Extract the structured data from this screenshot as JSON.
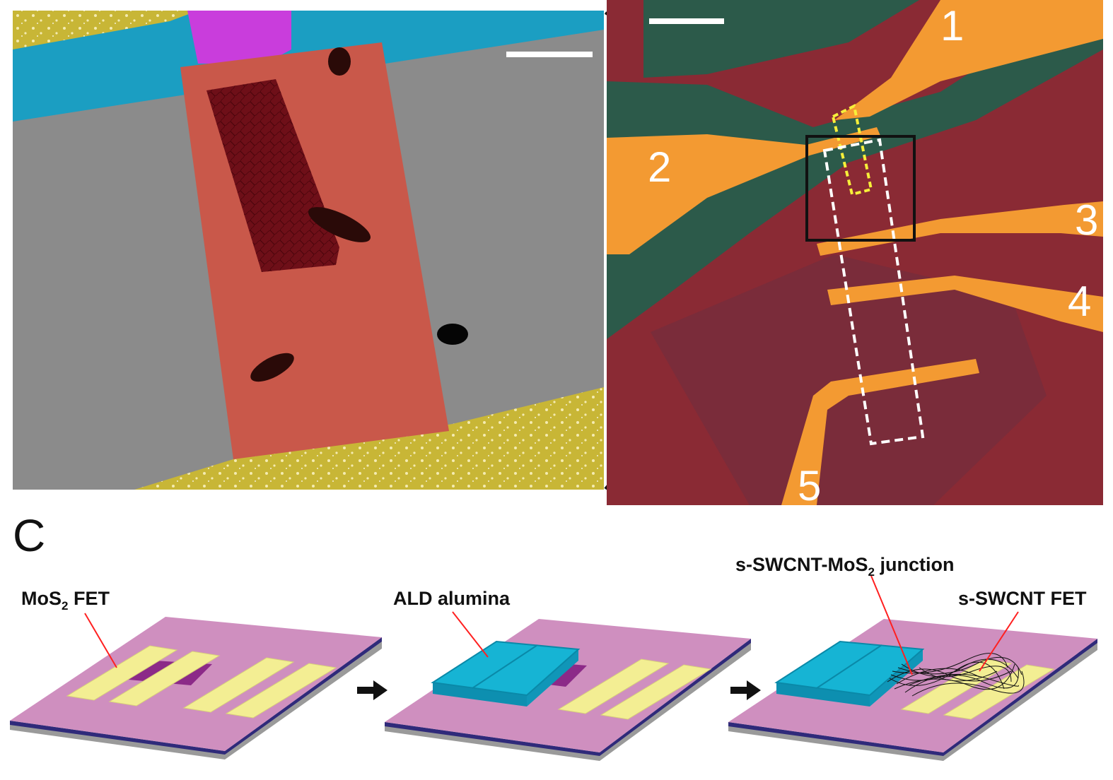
{
  "panel_c": {
    "letter": "C",
    "step1_label_pre": "MoS",
    "step1_label_sub": "2",
    "step1_label_post": " FET",
    "step2_label": "ALD alumina",
    "step3_junction_pre": "s-SWCNT-MoS",
    "step3_junction_sub": "2",
    "step3_junction_post": " junction",
    "step3_fet_label": "s-SWCNT FET"
  },
  "optical_image": {
    "electrode_labels": [
      "1",
      "2",
      "3",
      "4",
      "5"
    ]
  },
  "colors": {
    "substrate_top": "#cf8fbf",
    "substrate_side": "#2f2a7a",
    "electrode": "#f3ee93",
    "alumina": "#16b4d4",
    "mos2_flake": "#8c2a88",
    "sem_background": "#8b8b8b",
    "sem_flake": "#c9584a",
    "sem_dark_region": "#6e0f18",
    "sem_gold": "#c8b636",
    "sem_blue": "#1b9ec2",
    "sem_magenta": "#c93ddc",
    "optical_background": "#8a2a34",
    "optical_green": "#2c5a4a",
    "optical_electrode": "#f39a32",
    "leader_line": "#ff2020"
  }
}
